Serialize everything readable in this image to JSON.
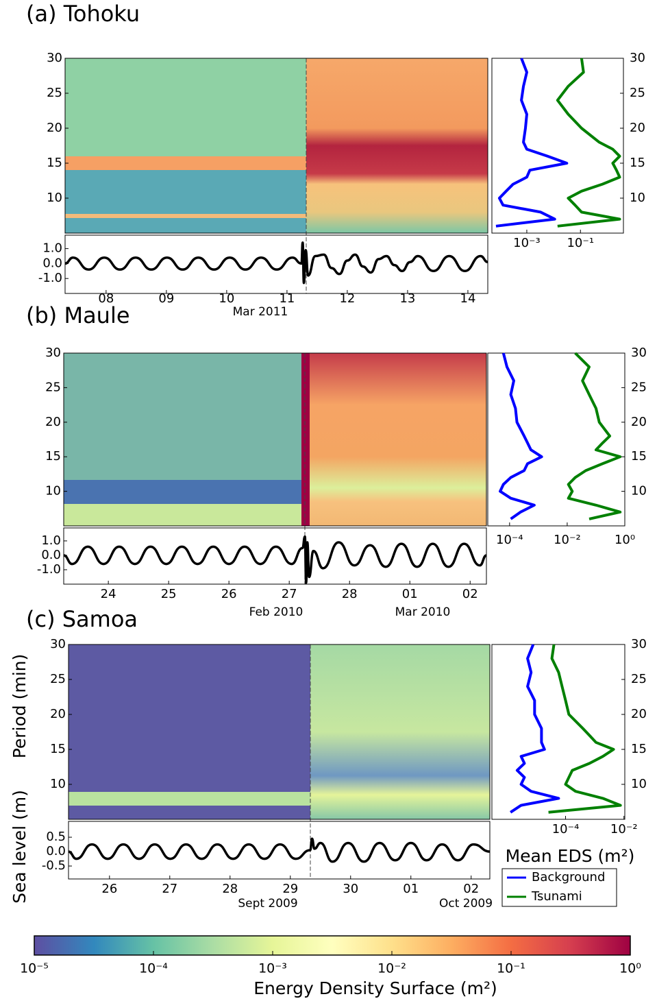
{
  "chart_data": [
    {
      "type": "spectrogram",
      "title": "(a) Tohoku",
      "ylim": [
        5,
        30
      ],
      "yticks": [
        10,
        15,
        20,
        25,
        30
      ],
      "sea_level": {
        "type": "line",
        "color": "#000000",
        "x": [
          7.32,
          7.45,
          7.71,
          7.97,
          8.23,
          8.49,
          8.75,
          9.01,
          9.27,
          9.53,
          9.79,
          10.05,
          10.31,
          10.57,
          10.83,
          11.09,
          11.24,
          11.26,
          11.28,
          11.31,
          11.35,
          11.47,
          11.61,
          11.74,
          11.87,
          12.0,
          12.13,
          12.26,
          12.39,
          12.52,
          12.65,
          12.78,
          12.91,
          13.04,
          13.17,
          13.43,
          13.69,
          13.95,
          14.21,
          14.33
        ],
        "values": [
          0,
          0.4,
          -0.4,
          0.4,
          -0.4,
          0.4,
          -0.4,
          0.4,
          -0.4,
          0.4,
          -0.4,
          0.4,
          -0.4,
          0.4,
          -0.4,
          0.4,
          0,
          1.4,
          -1.3,
          0.9,
          -0.8,
          0.5,
          0.6,
          -0.3,
          -0.7,
          0.2,
          0.6,
          -0.2,
          -0.6,
          0.3,
          0.5,
          -0.1,
          -0.5,
          0.1,
          0.5,
          -0.5,
          0.5,
          -0.5,
          0.5,
          0.1
        ],
        "xlim": [
          7.32,
          14.33
        ],
        "xticks": [
          {
            "value": 8,
            "label": "08"
          },
          {
            "value": 9,
            "label": "09"
          },
          10,
          11,
          12,
          13,
          14
        ],
        "ylim": [
          -2,
          1.9
        ],
        "yticks": [
          {
            "value": 1,
            "label": "1.0"
          },
          {
            "value": 0,
            "label": "0.0"
          },
          {
            "value": -1,
            "label": "-1.0"
          }
        ],
        "months": [
          "Mar 2011"
        ]
      },
      "profile": {
        "type": "line",
        "xlog": true,
        "xlim": [
          5e-05,
          4
        ],
        "xticks": [
          {
            "value": 0.001,
            "label": "10⁻³"
          },
          {
            "value": 0.1,
            "label": "10⁻¹"
          }
        ],
        "y": [
          6,
          7,
          8,
          9,
          10,
          11,
          12,
          13,
          14,
          15,
          16,
          17,
          18,
          20,
          22,
          24,
          26,
          28,
          30
        ],
        "series": [
          {
            "name": "Background",
            "color": "#0000ff",
            "values": [
              7.1e-05,
              0.011,
              0.0033,
              0.00013,
              9.5e-05,
              0.00017,
              0.00031,
              0.001,
              0.0013,
              0.031,
              0.0059,
              0.001,
              0.00075,
              0.00089,
              0.001,
              0.00063,
              0.00075,
              0.001,
              0.00063
            ]
          },
          {
            "name": "Tsunami",
            "color": "#008000",
            "values": [
              0.014,
              2.9,
              0.11,
              0.063,
              0.035,
              0.11,
              0.66,
              2.9,
              2.2,
              1.6,
              2.9,
              1.6,
              0.5,
              0.11,
              0.035,
              0.014,
              0.035,
              0.13,
              0.11
            ]
          }
        ]
      }
    },
    {
      "type": "spectrogram",
      "title": "(b) Maule",
      "ylim": [
        5,
        30
      ],
      "yticks": [
        10,
        15,
        20,
        25,
        30
      ],
      "sea_level": {
        "type": "line",
        "color": "#000000",
        "x": [
          23.26,
          23.4,
          23.66,
          23.92,
          24.18,
          24.44,
          24.7,
          24.96,
          25.22,
          25.48,
          25.74,
          26.0,
          26.26,
          26.52,
          26.78,
          27.04,
          27.22,
          27.26,
          27.28,
          27.3,
          27.33,
          27.4,
          27.56,
          27.82,
          28.08,
          28.34,
          28.6,
          28.86,
          29.12,
          29.38,
          29.64,
          29.9,
          30.16,
          30.27
        ],
        "values": [
          0,
          -0.6,
          0.6,
          -0.6,
          0.6,
          -0.6,
          0.6,
          -0.6,
          0.6,
          -0.6,
          0.6,
          -0.6,
          0.6,
          -0.6,
          0.6,
          -0.6,
          0.5,
          1.3,
          -1.9,
          0.9,
          -1.5,
          0.3,
          -0.9,
          0.9,
          -0.7,
          0.7,
          -0.8,
          0.8,
          -0.8,
          0.8,
          -0.8,
          0.8,
          -0.7,
          0
        ],
        "xlim": [
          23.26,
          30.27
        ],
        "xticks": [
          24,
          25,
          26,
          27,
          28,
          {
            "value": 29,
            "label": "01"
          },
          {
            "value": 30,
            "label": "02"
          }
        ],
        "ylim": [
          -2,
          1.9
        ],
        "yticks": [
          {
            "value": 1,
            "label": "1.0"
          },
          {
            "value": 0,
            "label": "0.0"
          },
          {
            "value": -1,
            "label": "-1.0"
          }
        ],
        "months": [
          "Feb 2010",
          "Mar 2010"
        ]
      },
      "profile": {
        "type": "line",
        "xlog": true,
        "xlim": [
          1.75e-05,
          1
        ],
        "xticks": [
          {
            "value": 0.0001,
            "label": "10⁻⁴"
          },
          {
            "value": 0.01,
            "label": "10⁻²"
          },
          {
            "value": 1,
            "label": "10⁰"
          }
        ],
        "y": [
          6,
          7,
          8,
          9,
          10,
          11,
          12,
          13,
          14,
          15,
          16,
          17,
          18,
          20,
          22,
          24,
          26,
          28,
          30
        ],
        "series": [
          {
            "name": "Background",
            "color": "#0000ff",
            "values": [
              0.00011,
              0.00024,
              0.00072,
              0.00011,
              4.7e-05,
              6.1e-05,
              0.00011,
              0.00032,
              0.00042,
              0.0013,
              0.00055,
              0.00042,
              0.00032,
              0.00018,
              0.00016,
              0.00011,
              0.00014,
              8.1e-05,
              6.1e-05
            ]
          },
          {
            "name": "Tsunami",
            "color": "#008000",
            "values": [
              0.058,
              0.69,
              0.1,
              0.011,
              0.015,
              0.011,
              0.019,
              0.044,
              0.17,
              0.69,
              0.1,
              0.17,
              0.3,
              0.13,
              0.1,
              0.058,
              0.034,
              0.058,
              0.019
            ]
          }
        ]
      }
    },
    {
      "type": "spectrogram",
      "title": "(c) Samoa",
      "ylabel": "Period (min)",
      "ylim": [
        5,
        30
      ],
      "yticks": [
        10,
        15,
        20,
        25,
        30
      ],
      "sea_level": {
        "type": "line",
        "color": "#000000",
        "ylabel": "Sea level (m)",
        "x": [
          25.32,
          25.45,
          25.71,
          25.97,
          26.23,
          26.49,
          26.75,
          27.01,
          27.27,
          27.53,
          27.79,
          28.05,
          28.31,
          28.57,
          28.83,
          29.09,
          29.33,
          29.36,
          29.4,
          29.5,
          29.7,
          29.96,
          30.22,
          30.48,
          30.74,
          31.0,
          31.26,
          31.52,
          31.78,
          32.04,
          32.31
        ],
        "values": [
          0,
          -0.25,
          0.25,
          -0.25,
          0.25,
          -0.25,
          0.25,
          -0.25,
          0.25,
          -0.25,
          0.25,
          -0.25,
          0.25,
          -0.25,
          0.25,
          -0.25,
          0.05,
          0.45,
          0.1,
          0.3,
          -0.35,
          0.3,
          -0.35,
          0.3,
          -0.3,
          0.3,
          -0.3,
          0.25,
          -0.3,
          0.25,
          0
        ],
        "xlim": [
          25.32,
          32.31
        ],
        "xticks": [
          26,
          27,
          28,
          29,
          30,
          {
            "value": 31,
            "label": "01"
          },
          {
            "value": 32,
            "label": "02"
          }
        ],
        "ylim": [
          -0.95,
          1.05
        ],
        "yticks": [
          0.5,
          {
            "value": 0,
            "label": "0.0"
          },
          -0.5
        ],
        "months": [
          "Sept 2009",
          "Oct 2009"
        ]
      },
      "profile": {
        "type": "line",
        "xlog": true,
        "xlim": [
          3e-07,
          0.0107
        ],
        "xlabel": "Mean EDS (m²)",
        "xticks": [
          {
            "value": 0.0001,
            "label": "10⁻⁴"
          },
          {
            "value": 0.01,
            "label": "10⁻²"
          }
        ],
        "y": [
          6,
          7,
          8,
          9,
          10,
          11,
          12,
          13,
          14,
          15,
          16,
          17,
          18,
          20,
          22,
          24,
          26,
          28,
          30
        ],
        "series": [
          {
            "name": "Background",
            "color": "#0000ff",
            "values": [
              1.3e-06,
              3e-06,
              5.8e-05,
              6.6e-06,
              3e-06,
              3.9e-06,
              2.2e-06,
              3.9e-06,
              3e-06,
              1.9e-05,
              1.5e-05,
              1.5e-05,
              1.5e-05,
              8.7e-06,
              8.7e-06,
              5e-06,
              6.6e-06,
              5e-06,
              7.8e-06
            ]
          },
          {
            "name": "Tsunami",
            "color": "#008000",
            "values": [
              2.6e-05,
              0.0076,
              0.0019,
              0.00022,
              0.0001,
              0.00013,
              0.00017,
              0.00066,
              0.0019,
              0.0044,
              0.0011,
              0.00066,
              0.00039,
              0.00013,
              0.0001,
              7.6e-05,
              5.8e-05,
              3.4e-05,
              4e-05
            ]
          }
        ]
      }
    },
    {
      "type": "colorbar",
      "title": "Energy Density Surface (m²)",
      "log": true,
      "xlim": [
        1e-05,
        1
      ],
      "xticks": [
        {
          "value": 1e-05,
          "label": "10⁻⁵"
        },
        {
          "value": 0.0001,
          "label": "10⁻⁴"
        },
        {
          "value": 0.001,
          "label": "10⁻³"
        },
        {
          "value": 0.01,
          "label": "10⁻²"
        },
        {
          "value": 0.1,
          "label": "10⁻¹"
        },
        {
          "value": 1,
          "label": "10⁰"
        }
      ],
      "colors": [
        "#5e4fa2",
        "#3288bd",
        "#66c2a5",
        "#abdda4",
        "#e6f598",
        "#ffffbf",
        "#fee08b",
        "#fdae61",
        "#f46d43",
        "#d53e4f",
        "#9e0142"
      ]
    }
  ]
}
